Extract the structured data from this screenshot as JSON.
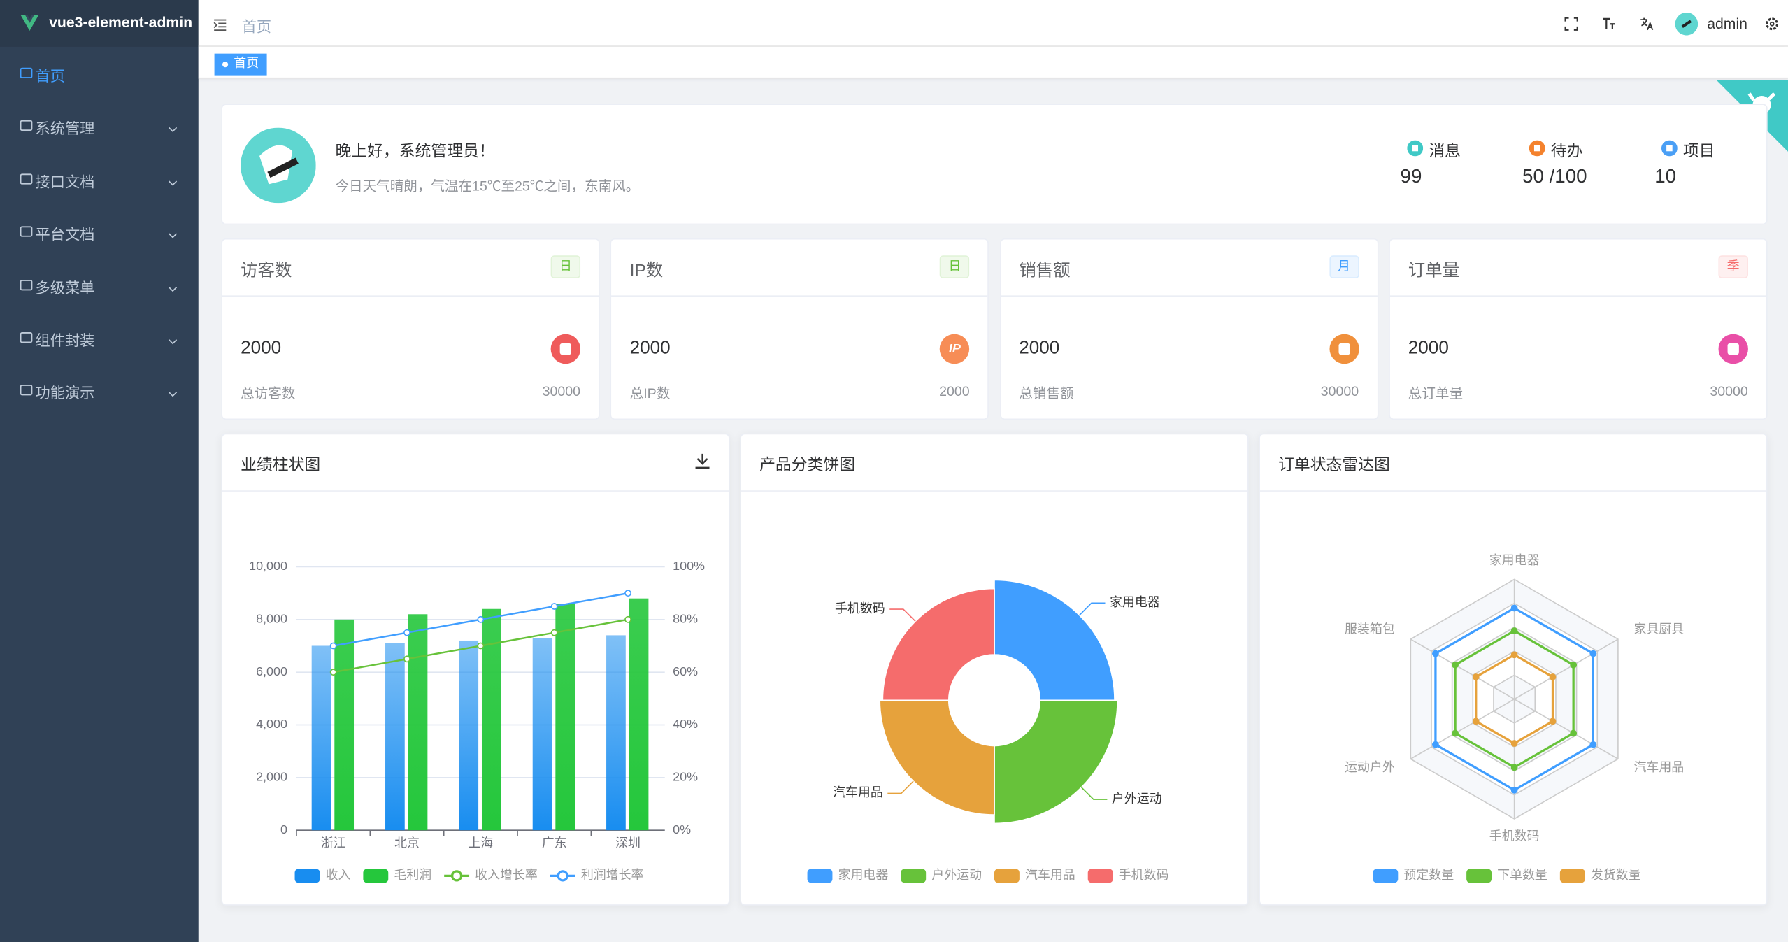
{
  "sidebar": {
    "brand": "vue3-element-admin",
    "menu": [
      "首页",
      "系统管理",
      "接口文档",
      "平台文档",
      "多级菜单",
      "组件封装",
      "功能演示"
    ]
  },
  "header": {
    "breadcrumb": "首页",
    "user": "admin"
  },
  "tags": [
    "首页"
  ],
  "welcome": {
    "greeting": "晚上好，系统管理员！",
    "weather": "今日天气晴朗，气温在15℃至25℃之间，东南风。",
    "items": [
      {
        "label": "消息",
        "value": 99
      },
      {
        "label": "待办",
        "value": "50 /100"
      },
      {
        "label": "项目",
        "value": 10
      }
    ]
  },
  "stats": [
    {
      "title": "访客数",
      "tag": "日",
      "value": 2000,
      "total_label": "总访客数",
      "total": 30000
    },
    {
      "title": "IP数",
      "tag": "日",
      "icon_text": "IP",
      "value": 2000,
      "total_label": "总IP数",
      "total": 2000
    },
    {
      "title": "销售额",
      "tag": "月",
      "value": 2000,
      "total_label": "总销售额",
      "total": 30000
    },
    {
      "title": "订单量",
      "tag": "季",
      "value": 2000,
      "total_label": "总订单量",
      "total": 30000
    }
  ],
  "chart_data": [
    {
      "type": "bar",
      "title": "业绩柱状图",
      "categories": [
        "浙江",
        "北京",
        "上海",
        "广东",
        "深圳"
      ],
      "series": [
        {
          "name": "收入",
          "type": "bar",
          "color": "#188df0",
          "values": [
            7000,
            7100,
            7200,
            7300,
            7400
          ]
        },
        {
          "name": "毛利润",
          "type": "bar",
          "color": "#25c73c",
          "values": [
            8000,
            8200,
            8400,
            8600,
            8800
          ]
        },
        {
          "name": "收入增长率",
          "type": "line",
          "axis": "y2",
          "color": "#67c23a",
          "values": [
            60,
            65,
            70,
            75,
            80
          ]
        },
        {
          "name": "利润增长率",
          "type": "line",
          "axis": "y2",
          "color": "#409eff",
          "values": [
            70,
            75,
            80,
            85,
            90
          ]
        }
      ],
      "ylim": [
        0,
        10000
      ],
      "yticks": [
        0,
        {
          "value": 2000,
          "label": "2,000"
        },
        {
          "value": 4000,
          "label": "4,000"
        },
        {
          "value": 6000,
          "label": "6,000"
        },
        {
          "value": 8000,
          "label": "8,000"
        },
        {
          "value": 10000,
          "label": "10,000"
        }
      ],
      "y2lim": [
        0,
        100
      ],
      "y2ticks": [
        {
          "value": 0,
          "label": "0%"
        },
        {
          "value": 20,
          "label": "20%"
        },
        {
          "value": 40,
          "label": "40%"
        },
        {
          "value": 60,
          "label": "60%"
        },
        {
          "value": 80,
          "label": "80%"
        },
        {
          "value": 100,
          "label": "100%"
        }
      ],
      "grid": true,
      "legend": "bottom"
    },
    {
      "type": "pie",
      "title": "产品分类饼图",
      "rose": true,
      "categories": [
        "家用电器",
        "户外运动",
        "汽车用品",
        "手机数码"
      ],
      "values": [
        26,
        27,
        24,
        23
      ],
      "colors": [
        "#409eff",
        "#67c23a",
        "#e6a23c",
        "#f56c6c"
      ],
      "legend": "bottom"
    },
    {
      "type": "radar",
      "title": "订单状态雷达图",
      "categories": [
        "家用电器",
        "家具厨具",
        "汽车用品",
        "手机数码",
        "运动户外",
        "服装箱包"
      ],
      "rlim": [
        0,
        100
      ],
      "series": [
        {
          "name": "预定数量",
          "color": "#409eff",
          "values": [
            76,
            76,
            76,
            76,
            76,
            76
          ]
        },
        {
          "name": "下单数量",
          "color": "#67c23a",
          "values": [
            57,
            57,
            57,
            57,
            57,
            57
          ]
        },
        {
          "name": "发货数量",
          "color": "#e6a23c",
          "values": [
            37,
            37,
            37,
            37,
            37,
            37
          ]
        }
      ],
      "legend": "bottom"
    }
  ]
}
